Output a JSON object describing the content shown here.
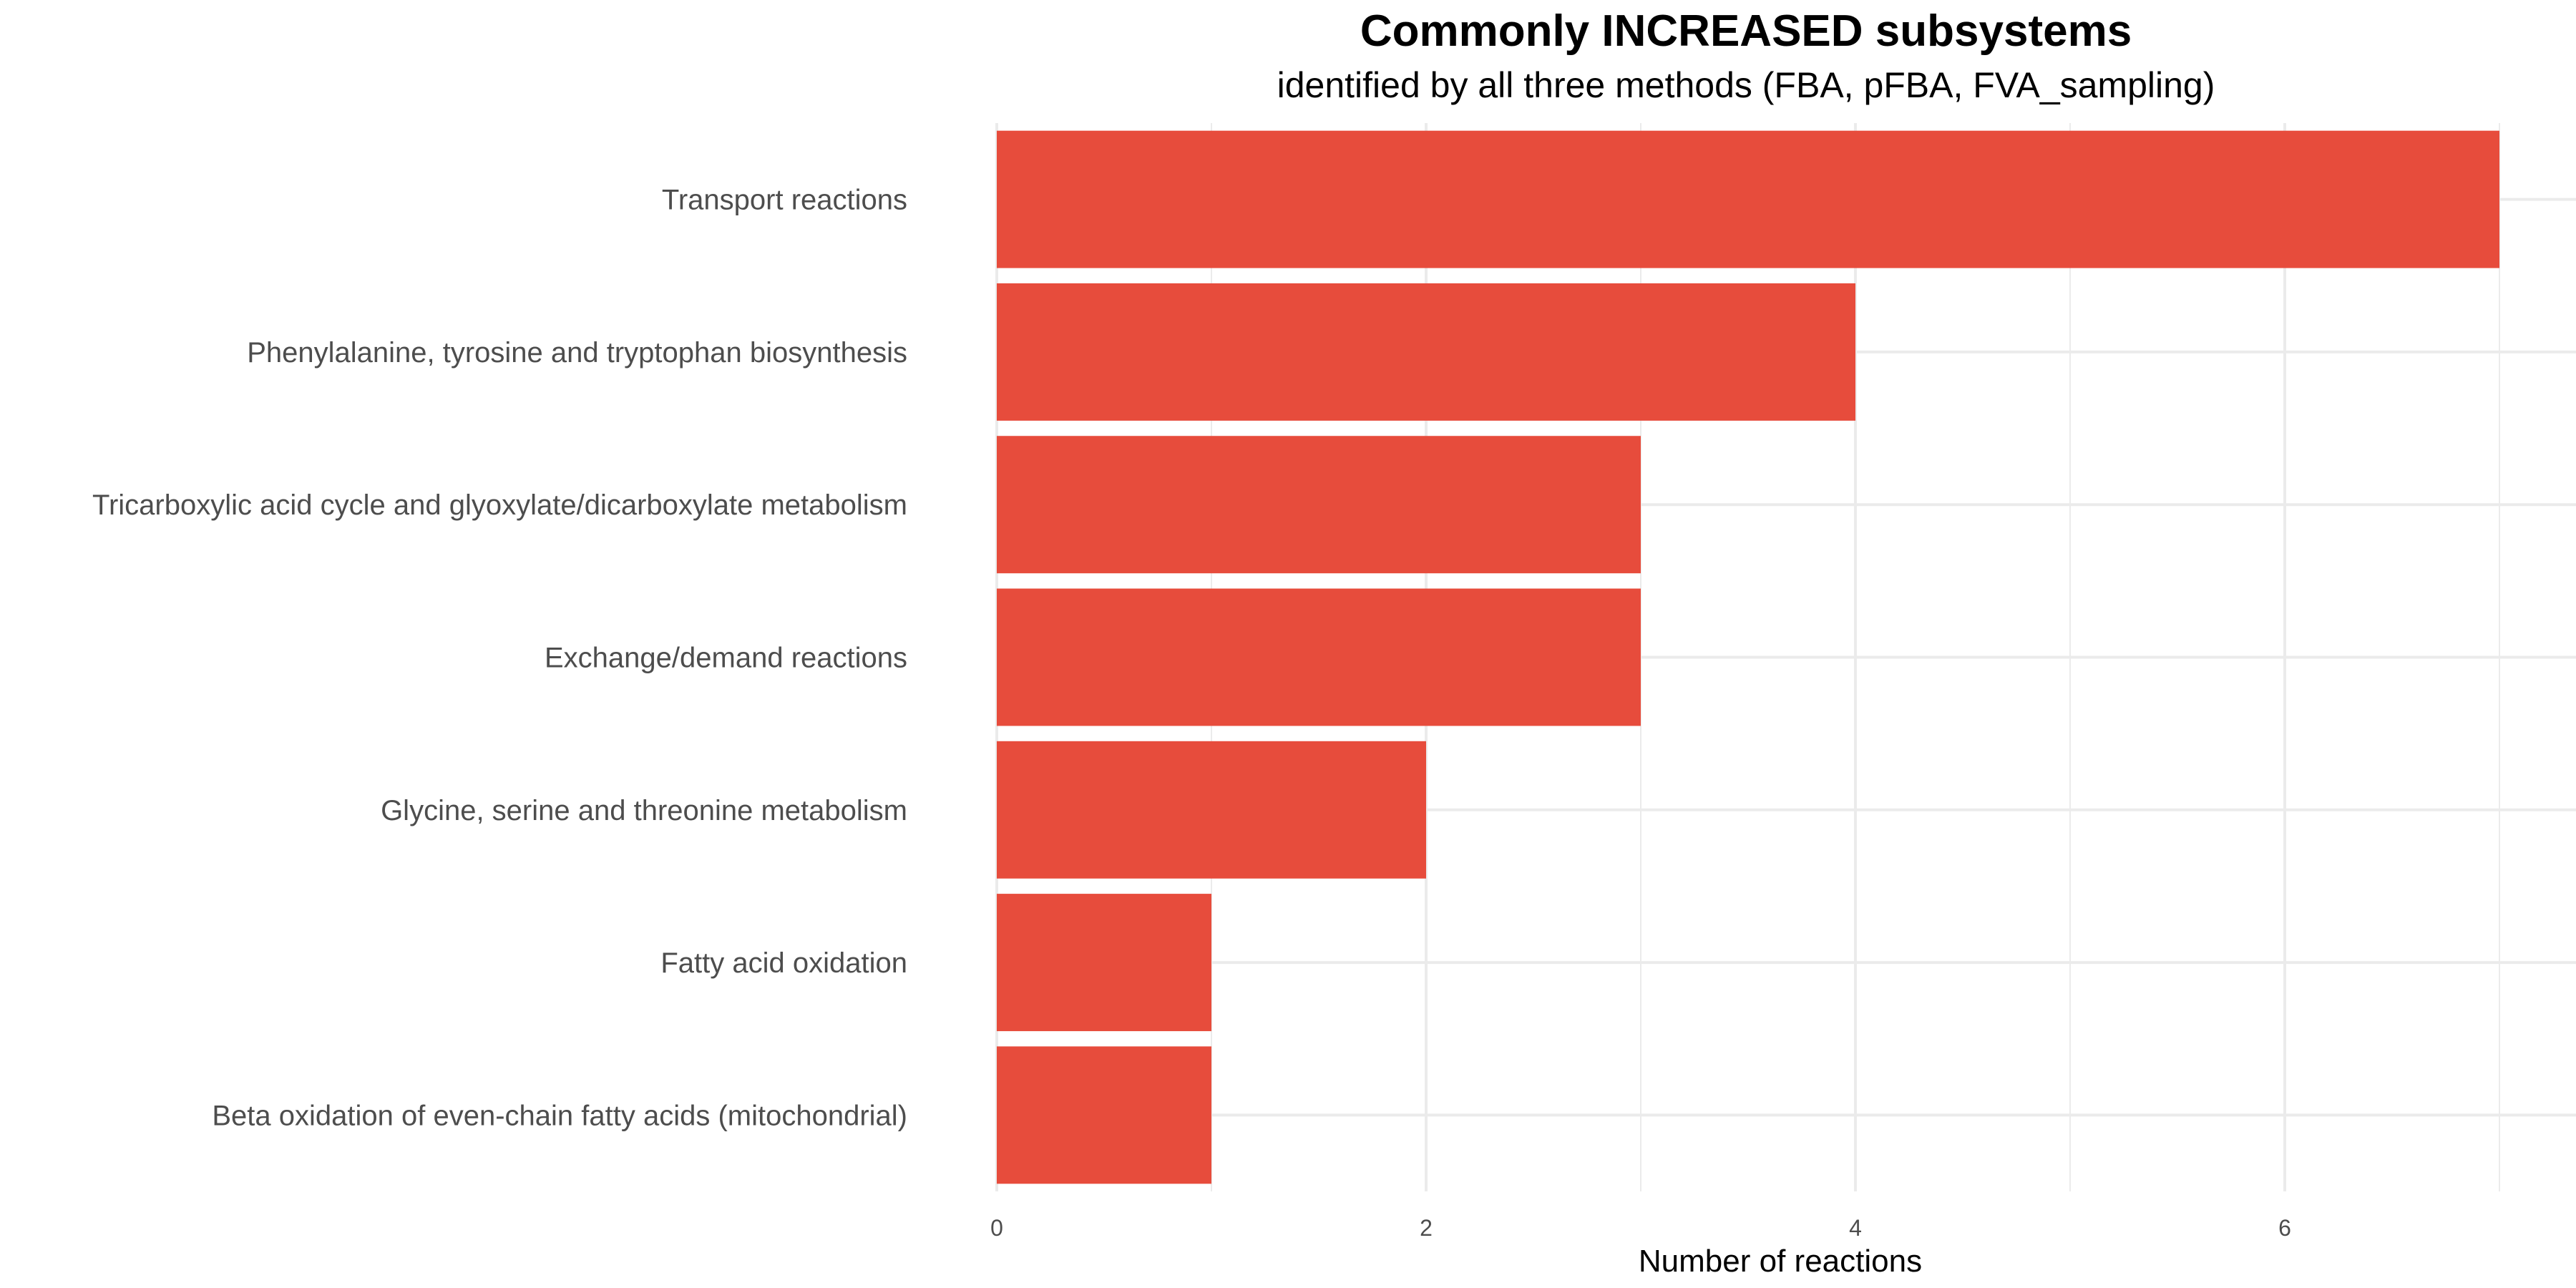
{
  "chart_data": {
    "type": "bar",
    "orientation": "horizontal",
    "title": "Commonly INCREASED subsystems",
    "subtitle": "identified by all three methods (FBA, pFBA, FVA_sampling)",
    "xlabel": "Number of reactions",
    "ylabel": "",
    "categories": [
      "Transport reactions",
      "Phenylalanine, tyrosine and tryptophan biosynthesis",
      "Tricarboxylic acid cycle and glyoxylate/dicarboxylate metabolism",
      "Exchange/demand reactions",
      "Glycine, serine and threonine metabolism",
      "Fatty acid oxidation",
      "Beta oxidation of even-chain fatty acids (mitochondrial)"
    ],
    "values": [
      7,
      4,
      3,
      3,
      2,
      1,
      1
    ],
    "xlim": [
      0,
      7.3
    ],
    "x_ticks": [
      0,
      2,
      4,
      6
    ],
    "x_minor_ticks": [
      1,
      3,
      5,
      7
    ],
    "grid": true,
    "legend": "none",
    "bar_color": "#E74C3C",
    "grid_color": "#EBEBEB"
  }
}
